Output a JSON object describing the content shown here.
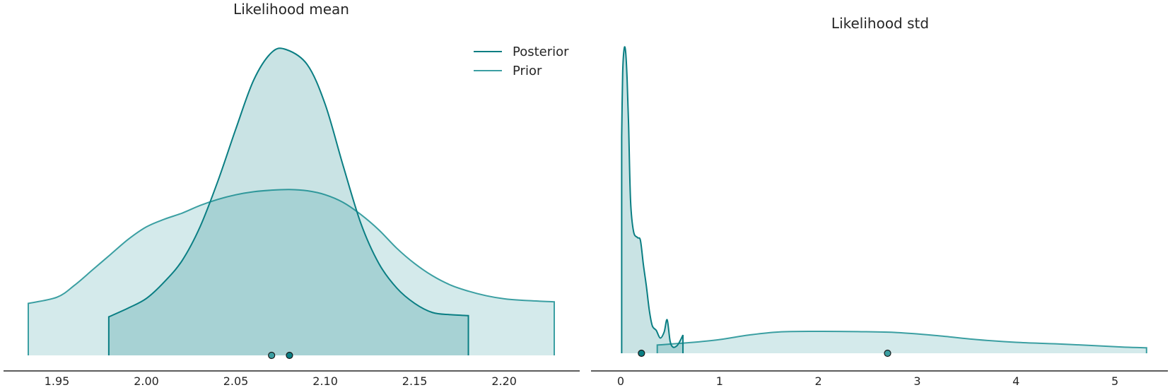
{
  "chart_data": [
    {
      "type": "area",
      "title": "Likelihood mean",
      "xlim": [
        1.934,
        2.228
      ],
      "xticks": [
        "1.95",
        "2.00",
        "2.05",
        "2.10",
        "2.15",
        "2.20"
      ],
      "xtick_values": [
        1.95,
        2.0,
        2.05,
        2.1,
        2.15,
        2.2
      ],
      "legend": {
        "placement": "top-right",
        "entries": [
          "Posterior",
          "Prior"
        ]
      },
      "grid": false,
      "series": [
        {
          "name": "Posterior",
          "color": "#0a7e83",
          "hdi": [
            1.979,
            2.18
          ],
          "point_estimate": 2.08,
          "x": [
            1.979,
            1.99,
            2.0,
            2.01,
            2.02,
            2.03,
            2.04,
            2.05,
            2.06,
            2.07,
            2.078,
            2.09,
            2.1,
            2.11,
            2.12,
            2.13,
            2.14,
            2.15,
            2.16,
            2.17,
            2.18
          ],
          "density": [
            0.126,
            0.155,
            0.186,
            0.24,
            0.31,
            0.42,
            0.57,
            0.74,
            0.9,
            0.99,
            1.0,
            0.95,
            0.82,
            0.62,
            0.43,
            0.3,
            0.22,
            0.17,
            0.14,
            0.133,
            0.13
          ]
        },
        {
          "name": "Prior",
          "color": "#3b9fa2",
          "hdi": [
            1.934,
            2.228
          ],
          "point_estimate": 2.07,
          "x": [
            1.934,
            1.95,
            1.96,
            1.97,
            1.98,
            1.99,
            2.0,
            2.01,
            2.02,
            2.03,
            2.04,
            2.05,
            2.06,
            2.07,
            2.08,
            2.09,
            2.1,
            2.11,
            2.12,
            2.13,
            2.14,
            2.15,
            2.16,
            2.17,
            2.18,
            2.19,
            2.2,
            2.21,
            2.228
          ],
          "density": [
            0.17,
            0.19,
            0.23,
            0.28,
            0.33,
            0.38,
            0.42,
            0.445,
            0.465,
            0.49,
            0.51,
            0.525,
            0.535,
            0.54,
            0.542,
            0.538,
            0.525,
            0.5,
            0.46,
            0.41,
            0.35,
            0.3,
            0.26,
            0.23,
            0.21,
            0.195,
            0.185,
            0.18,
            0.175
          ]
        }
      ]
    },
    {
      "type": "area",
      "title": "Likelihood std",
      "xlim": [
        -0.1,
        5.4
      ],
      "xticks": [
        "0",
        "1",
        "2",
        "3",
        "4",
        "5"
      ],
      "xtick_values": [
        0,
        1,
        2,
        3,
        4,
        5
      ],
      "grid": false,
      "series": [
        {
          "name": "Posterior",
          "color": "#0a7e83",
          "hdi": [
            0.01,
            0.63
          ],
          "point_estimate": 0.21,
          "x": [
            0.01,
            0.02,
            0.035,
            0.05,
            0.065,
            0.08,
            0.1,
            0.13,
            0.17,
            0.2,
            0.23,
            0.26,
            0.29,
            0.32,
            0.36,
            0.4,
            0.44,
            0.47,
            0.5,
            0.53,
            0.57,
            0.6,
            0.63
          ],
          "density": [
            0.71,
            0.92,
            1.0,
            0.99,
            0.9,
            0.75,
            0.5,
            0.4,
            0.38,
            0.37,
            0.29,
            0.22,
            0.14,
            0.09,
            0.075,
            0.05,
            0.07,
            0.11,
            0.04,
            0.02,
            0.025,
            0.04,
            0.06
          ]
        },
        {
          "name": "Prior",
          "color": "#3b9fa2",
          "hdi": [
            0.37,
            5.32
          ],
          "point_estimate": 2.7,
          "x": [
            0.37,
            0.7,
            1.0,
            1.3,
            1.6,
            2.0,
            2.4,
            2.8,
            3.2,
            3.6,
            4.0,
            4.4,
            4.8,
            5.1,
            5.32
          ],
          "density": [
            0.027,
            0.035,
            0.045,
            0.06,
            0.07,
            0.072,
            0.071,
            0.068,
            0.058,
            0.045,
            0.036,
            0.031,
            0.025,
            0.02,
            0.018
          ]
        }
      ]
    }
  ]
}
